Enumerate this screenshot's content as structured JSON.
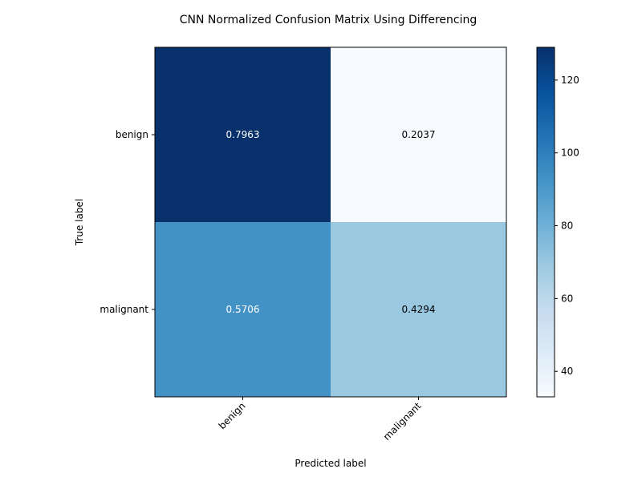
{
  "chart_data": {
    "type": "heatmap",
    "title": "CNN Normalized Confusion Matrix Using Differencing",
    "xlabel": "Predicted label",
    "ylabel": "True label",
    "x_categories": [
      "benign",
      "malignant"
    ],
    "y_categories": [
      "benign",
      "malignant"
    ],
    "cell_values": [
      [
        0.7963,
        0.2037
      ],
      [
        0.5706,
        0.4294
      ]
    ],
    "cell_labels": [
      [
        "0.7963",
        "0.2037"
      ],
      [
        "0.5706",
        "0.4294"
      ]
    ],
    "color_counts": [
      [
        129,
        33
      ],
      [
        93,
        70
      ]
    ],
    "colormap": "Blues",
    "colorbar": {
      "range": [
        33,
        129
      ],
      "ticks": [
        40,
        60,
        80,
        100,
        120
      ],
      "tick_labels": [
        "40",
        "60",
        "80",
        "100",
        "120"
      ]
    },
    "grid": false
  }
}
